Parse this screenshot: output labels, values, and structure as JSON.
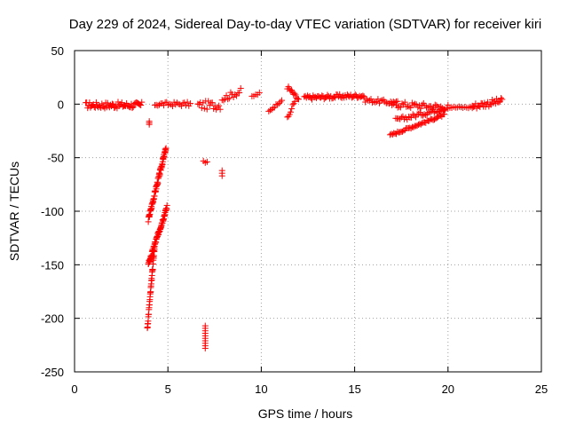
{
  "chart_data": {
    "type": "scatter",
    "title": "Day 229 of 2024, Sidereal Day-to-day VTEC variation (SDTVAR) for receiver kiri",
    "xlabel": "GPS time / hours",
    "ylabel": "SDTVAR / TECUs",
    "xlim": [
      0,
      25
    ],
    "ylim": [
      -250,
      50
    ],
    "x_ticks": [
      0,
      5,
      10,
      15,
      20,
      25
    ],
    "y_ticks": [
      -250,
      -200,
      -150,
      -100,
      -50,
      0,
      50
    ],
    "grid": true,
    "marker": "+",
    "color": "#ff0000",
    "segments": [
      {
        "x": [
          0.6,
          3.6
        ],
        "y": [
          -1,
          -1
        ],
        "n": 60,
        "jitter": 3
      },
      {
        "x": [
          4.3,
          6.2
        ],
        "y": [
          0,
          0
        ],
        "n": 25,
        "jitter": 2
      },
      {
        "x": [
          6.6,
          7.8
        ],
        "y": [
          -1,
          -1
        ],
        "n": 18,
        "jitter": 4
      },
      {
        "x": [
          7.9,
          8.9
        ],
        "y": [
          5,
          12
        ],
        "n": 14,
        "jitter": 3
      },
      {
        "x": [
          9.5,
          9.9
        ],
        "y": [
          7,
          10
        ],
        "n": 5,
        "jitter": 1
      },
      {
        "x": [
          10.4,
          11.1
        ],
        "y": [
          -7,
          4
        ],
        "n": 10,
        "jitter": 1
      },
      {
        "x": [
          11.4,
          11.8
        ],
        "y": [
          -14,
          3
        ],
        "n": 8,
        "jitter": 2
      },
      {
        "x": [
          11.4,
          12.0
        ],
        "y": [
          16,
          4
        ],
        "n": 12,
        "jitter": 2
      },
      {
        "x": [
          12.3,
          15.5
        ],
        "y": [
          6,
          8
        ],
        "n": 55,
        "jitter": 2
      },
      {
        "x": [
          15.5,
          17.3
        ],
        "y": [
          4,
          1
        ],
        "n": 25,
        "jitter": 2
      },
      {
        "x": [
          17.0,
          20.0
        ],
        "y": [
          0,
          -3
        ],
        "n": 40,
        "jitter": 3
      },
      {
        "x": [
          16.9,
          19.8
        ],
        "y": [
          -29,
          -10
        ],
        "n": 45,
        "jitter": 1
      },
      {
        "x": [
          17.2,
          19.8
        ],
        "y": [
          -15,
          -4
        ],
        "n": 35,
        "jitter": 2
      },
      {
        "x": [
          20.0,
          21.3
        ],
        "y": [
          -3,
          -3
        ],
        "n": 14,
        "jitter": 1
      },
      {
        "x": [
          21.3,
          22.9
        ],
        "y": [
          -2,
          3
        ],
        "n": 28,
        "jitter": 3
      },
      {
        "x": [
          4.0,
          4.0
        ],
        "y": [
          -16,
          -19
        ],
        "n": 3,
        "jitter": 0
      },
      {
        "x": [
          3.95,
          4.9
        ],
        "y": [
          -108,
          -41
        ],
        "n": 70,
        "jitter": 2
      },
      {
        "x": [
          3.95,
          4.95
        ],
        "y": [
          -150,
          -96
        ],
        "n": 70,
        "jitter": 2
      },
      {
        "x": [
          3.9,
          4.3
        ],
        "y": [
          -209,
          -130
        ],
        "n": 40,
        "jitter": 2
      },
      {
        "x": [
          7.0,
          7.0
        ],
        "y": [
          -207,
          -228
        ],
        "n": 10,
        "jitter": 0
      },
      {
        "x": [
          6.9,
          7.1
        ],
        "y": [
          -54,
          -54
        ],
        "n": 3,
        "jitter": 1
      },
      {
        "x": [
          7.9,
          7.9
        ],
        "y": [
          -62,
          -67
        ],
        "n": 3,
        "jitter": 0
      }
    ]
  }
}
